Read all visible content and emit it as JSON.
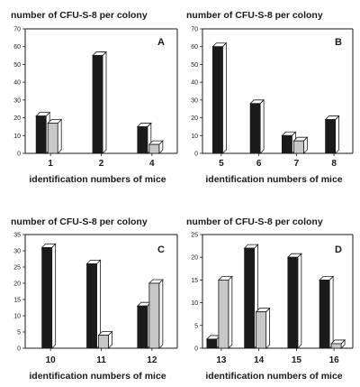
{
  "chart_data": [
    {
      "type": "bar",
      "panel": "A",
      "ylabel": "number of CFU-S-8 per colony",
      "xlabel": "identification numbers of mice",
      "ylim": [
        0,
        70
      ],
      "yticks": [
        0,
        10,
        20,
        30,
        40,
        50,
        60,
        70
      ],
      "categories": [
        "1",
        "2",
        "4"
      ],
      "series": [
        {
          "color": "#1a1a1a",
          "values": [
            21,
            55,
            15
          ]
        },
        {
          "color": "#c8c8c8",
          "values": [
            17,
            null,
            5
          ]
        }
      ]
    },
    {
      "type": "bar",
      "panel": "B",
      "ylabel": "number of CFU-S-8 per colony",
      "xlabel": "identification numbers of mice",
      "ylim": [
        0,
        70
      ],
      "yticks": [
        0,
        10,
        20,
        30,
        40,
        50,
        60,
        70
      ],
      "categories": [
        "5",
        "6",
        "7",
        "8"
      ],
      "series": [
        {
          "color": "#1a1a1a",
          "values": [
            60,
            28,
            10,
            19
          ]
        },
        {
          "color": "#c8c8c8",
          "values": [
            null,
            null,
            7,
            null
          ]
        }
      ]
    },
    {
      "type": "bar",
      "panel": "C",
      "ylabel": "number of CFU-S-8 per colony",
      "xlabel": "identification numbers of mice",
      "ylim": [
        0,
        35
      ],
      "yticks": [
        0,
        5,
        10,
        15,
        20,
        25,
        30,
        35
      ],
      "categories": [
        "10",
        "11",
        "12"
      ],
      "series": [
        {
          "color": "#1a1a1a",
          "values": [
            31,
            26,
            13
          ]
        },
        {
          "color": "#c8c8c8",
          "values": [
            null,
            4,
            20
          ]
        }
      ]
    },
    {
      "type": "bar",
      "panel": "D",
      "ylabel": "number of CFU-S-8 per colony",
      "xlabel": "identification numbers of mice",
      "ylim": [
        0,
        25
      ],
      "yticks": [
        0,
        5,
        10,
        15,
        20,
        25
      ],
      "categories": [
        "13",
        "14",
        "15",
        "16"
      ],
      "series": [
        {
          "color": "#1a1a1a",
          "values": [
            2,
            22,
            20,
            15
          ]
        },
        {
          "color": "#c8c8c8",
          "values": [
            15,
            8,
            null,
            1
          ]
        }
      ]
    }
  ]
}
